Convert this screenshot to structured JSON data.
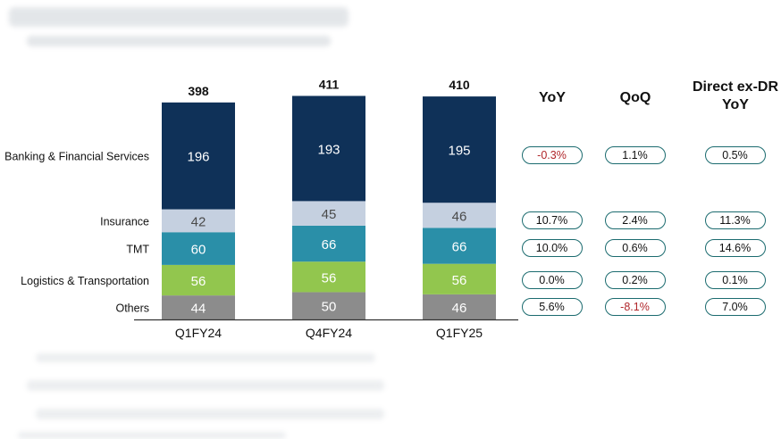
{
  "chart_data": {
    "type": "bar",
    "stacked": true,
    "categories": [
      "Q1FY24",
      "Q4FY24",
      "Q1FY25"
    ],
    "totals": [
      398,
      411,
      410
    ],
    "series": [
      {
        "name": "Others",
        "values": [
          44,
          50,
          46
        ],
        "color": "#8c8c8c",
        "label_color": "#ffffff"
      },
      {
        "name": "Logistics & Transportation",
        "values": [
          56,
          56,
          56
        ],
        "color": "#92c64e",
        "label_color": "#ffffff"
      },
      {
        "name": "TMT",
        "values": [
          60,
          66,
          66
        ],
        "color": "#2a8fa8",
        "label_color": "#ffffff"
      },
      {
        "name": "Insurance",
        "values": [
          42,
          45,
          46
        ],
        "color": "#c5d0e0",
        "label_color": "#4a4a4a"
      },
      {
        "name": "Banking & Financial Services",
        "values": [
          196,
          193,
          195
        ],
        "color": "#0f3158",
        "label_color": "#ffffff"
      }
    ],
    "grid": false,
    "legend": "left"
  },
  "growth_table": {
    "headers": [
      "YoY",
      "QoQ",
      "Direct ex-DR YoY"
    ],
    "header_lines": [
      [
        "YoY"
      ],
      [
        "QoQ"
      ],
      [
        "Direct ex-DR",
        "YoY"
      ]
    ],
    "rows": [
      {
        "segment": "Banking & Financial Services",
        "values": [
          "-0.3%",
          "1.1%",
          "0.5%"
        ],
        "negative": [
          true,
          false,
          false
        ]
      },
      {
        "segment": "Insurance",
        "values": [
          "10.7%",
          "2.4%",
          "11.3%"
        ],
        "negative": [
          false,
          false,
          false
        ]
      },
      {
        "segment": "TMT",
        "values": [
          "10.0%",
          "0.6%",
          "14.6%"
        ],
        "negative": [
          false,
          false,
          false
        ]
      },
      {
        "segment": "Logistics & Transportation",
        "values": [
          "0.0%",
          "0.2%",
          "0.1%"
        ],
        "negative": [
          false,
          false,
          false
        ]
      },
      {
        "segment": "Others",
        "values": [
          "5.6%",
          "-8.1%",
          "7.0%"
        ],
        "negative": [
          false,
          true,
          false
        ]
      }
    ],
    "pill_border_color": "#1b6b6f",
    "negative_color": "#b0262a"
  }
}
